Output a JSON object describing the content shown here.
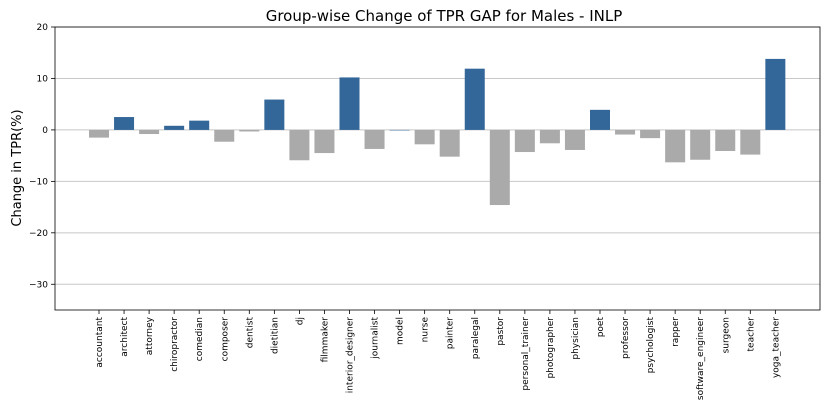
{
  "chart_data": {
    "type": "bar",
    "title": "Group-wise Change of TPR GAP for Males - INLP",
    "xlabel": "",
    "ylabel": "Change in TPR(%)",
    "ylim": [
      -35,
      20
    ],
    "yticks": [
      -30,
      -20,
      -10,
      0,
      10,
      20
    ],
    "ytick_labels": [
      "−30",
      "−20",
      "−10",
      "0",
      "10",
      "20"
    ],
    "grid": true,
    "colors": {
      "positive": "#336699",
      "negative": "#aaaaaa",
      "grid": "#c8c8c8"
    },
    "categories": [
      "accountant",
      "architect",
      "attorney",
      "chiropractor",
      "comedian",
      "composer",
      "dentist",
      "dietitian",
      "dj",
      "filmmaker",
      "interior_designer",
      "journalist",
      "model",
      "nurse",
      "painter",
      "paralegal",
      "pastor",
      "personal_trainer",
      "photographer",
      "physician",
      "poet",
      "professor",
      "psychologist",
      "rapper",
      "software_engineer",
      "surgeon",
      "teacher",
      "yoga_teacher"
    ],
    "values": [
      -1.5,
      2.5,
      -0.8,
      0.8,
      1.8,
      -2.3,
      -0.3,
      5.9,
      -5.9,
      -4.5,
      10.2,
      -3.7,
      0.0,
      -2.8,
      -5.2,
      11.9,
      -14.6,
      -4.3,
      -2.6,
      -3.9,
      3.9,
      -0.9,
      -1.6,
      -6.3,
      -5.8,
      -4.1,
      -4.8,
      13.8
    ]
  }
}
